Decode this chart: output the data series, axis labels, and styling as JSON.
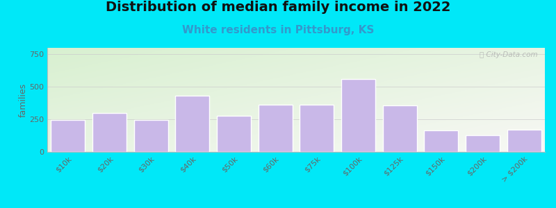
{
  "title": "Distribution of median family income in 2022",
  "subtitle": "White residents in Pittsburg, KS",
  "ylabel": "families",
  "categories": [
    "$10k",
    "$20k",
    "$30k",
    "$40k",
    "$50k",
    "$60k",
    "$75k",
    "$100k",
    "$125k",
    "$150k",
    "$200k",
    "> $200k"
  ],
  "values": [
    245,
    300,
    245,
    430,
    275,
    365,
    365,
    560,
    355,
    165,
    130,
    170
  ],
  "bar_color": "#c9b8e8",
  "bar_edge_color": "#ffffff",
  "background_outer": "#00e8f8",
  "bg_grad_topleft": "#d8f0d0",
  "bg_grad_right": "#f5f5f0",
  "title_fontsize": 14,
  "subtitle_fontsize": 11,
  "subtitle_color": "#3399cc",
  "ylabel_fontsize": 9,
  "tick_label_fontsize": 8,
  "ytick_label_color": "#666666",
  "xtick_label_color": "#666666",
  "yticks": [
    0,
    250,
    500,
    750
  ],
  "ylim": [
    0,
    800
  ],
  "watermark": "ⓘ City-Data.com"
}
